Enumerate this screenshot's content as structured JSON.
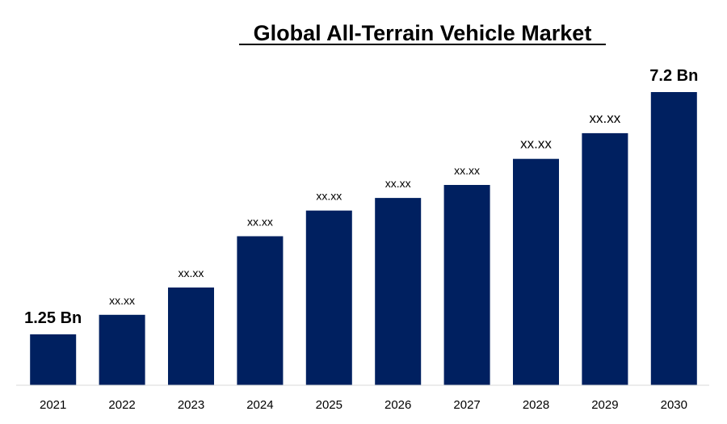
{
  "chart_data": {
    "type": "bar",
    "title": "Global All-Terrain Vehicle Market",
    "xlabel": "",
    "ylabel": "",
    "categories": [
      "2021",
      "2022",
      "2023",
      "2024",
      "2025",
      "2026",
      "2027",
      "2028",
      "2029",
      "2030"
    ],
    "values": [
      1.25,
      1.73,
      2.4,
      3.66,
      4.29,
      4.6,
      4.92,
      5.56,
      6.19,
      7.2
    ],
    "data_labels": [
      "1.25 Bn",
      "xx.xx",
      "xx.xx",
      "xx.xx",
      "xx.xx",
      "xx.xx",
      "xx.xx",
      "xx.xx",
      "xx.xx",
      "7.2 Bn"
    ],
    "ylim": [
      0,
      7.2
    ],
    "grid": false,
    "legend": "none",
    "bar_color": "#002060"
  }
}
